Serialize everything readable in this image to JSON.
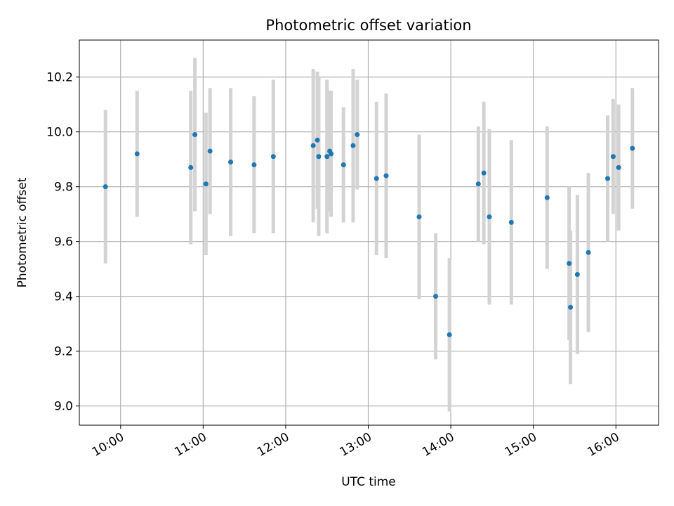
{
  "chart_data": {
    "type": "scatter",
    "title": "Photometric offset variation",
    "xlabel": "UTC time",
    "ylabel": "Photometric offset",
    "x_ticks": [
      "10:00",
      "11:00",
      "12:00",
      "13:00",
      "14:00",
      "15:00",
      "16:00"
    ],
    "y_ticks": [
      "9.0",
      "9.2",
      "9.4",
      "9.6",
      "9.8",
      "10.0",
      "10.2"
    ],
    "xlim": [
      "09:30",
      "16:31"
    ],
    "ylim": [
      8.93,
      10.335
    ],
    "grid": true,
    "legend": "none",
    "point_color": "#1f77b4",
    "errorbar_color": "#d3d3d3",
    "points": [
      {
        "time": "09:49",
        "y": 9.8,
        "err": 0.28
      },
      {
        "time": "10:12",
        "y": 9.92,
        "err": 0.23
      },
      {
        "time": "10:51",
        "y": 9.87,
        "err": 0.28
      },
      {
        "time": "10:54",
        "y": 9.99,
        "err": 0.28
      },
      {
        "time": "11:02",
        "y": 9.81,
        "err": 0.26
      },
      {
        "time": "11:05",
        "y": 9.93,
        "err": 0.23
      },
      {
        "time": "11:20",
        "y": 9.89,
        "err": 0.27
      },
      {
        "time": "11:37",
        "y": 9.88,
        "err": 0.25
      },
      {
        "time": "11:51",
        "y": 9.91,
        "err": 0.28
      },
      {
        "time": "12:20",
        "y": 9.95,
        "err": 0.28
      },
      {
        "time": "12:23",
        "y": 9.97,
        "err": 0.25
      },
      {
        "time": "12:24",
        "y": 9.91,
        "err": 0.29
      },
      {
        "time": "12:30",
        "y": 9.91,
        "err": 0.28
      },
      {
        "time": "12:32",
        "y": 9.93,
        "err": 0.22
      },
      {
        "time": "12:33",
        "y": 9.92,
        "err": 0.23
      },
      {
        "time": "12:42",
        "y": 9.88,
        "err": 0.21
      },
      {
        "time": "12:49",
        "y": 9.95,
        "err": 0.28
      },
      {
        "time": "12:52",
        "y": 9.99,
        "err": 0.2
      },
      {
        "time": "13:06",
        "y": 9.83,
        "err": 0.28
      },
      {
        "time": "13:13",
        "y": 9.84,
        "err": 0.3
      },
      {
        "time": "13:37",
        "y": 9.69,
        "err": 0.3
      },
      {
        "time": "13:49",
        "y": 9.4,
        "err": 0.23
      },
      {
        "time": "13:59",
        "y": 9.26,
        "err": 0.28
      },
      {
        "time": "14:20",
        "y": 9.81,
        "err": 0.21
      },
      {
        "time": "14:24",
        "y": 9.85,
        "err": 0.26
      },
      {
        "time": "14:28",
        "y": 9.69,
        "err": 0.32
      },
      {
        "time": "14:44",
        "y": 9.67,
        "err": 0.3
      },
      {
        "time": "15:10",
        "y": 9.76,
        "err": 0.26
      },
      {
        "time": "15:26",
        "y": 9.52,
        "err": 0.28
      },
      {
        "time": "15:27",
        "y": 9.36,
        "err": 0.28
      },
      {
        "time": "15:32",
        "y": 9.48,
        "err": 0.29
      },
      {
        "time": "15:40",
        "y": 9.56,
        "err": 0.29
      },
      {
        "time": "15:54",
        "y": 9.83,
        "err": 0.23
      },
      {
        "time": "15:58",
        "y": 9.91,
        "err": 0.21
      },
      {
        "time": "16:02",
        "y": 9.87,
        "err": 0.23
      },
      {
        "time": "16:12",
        "y": 9.94,
        "err": 0.22
      }
    ]
  }
}
